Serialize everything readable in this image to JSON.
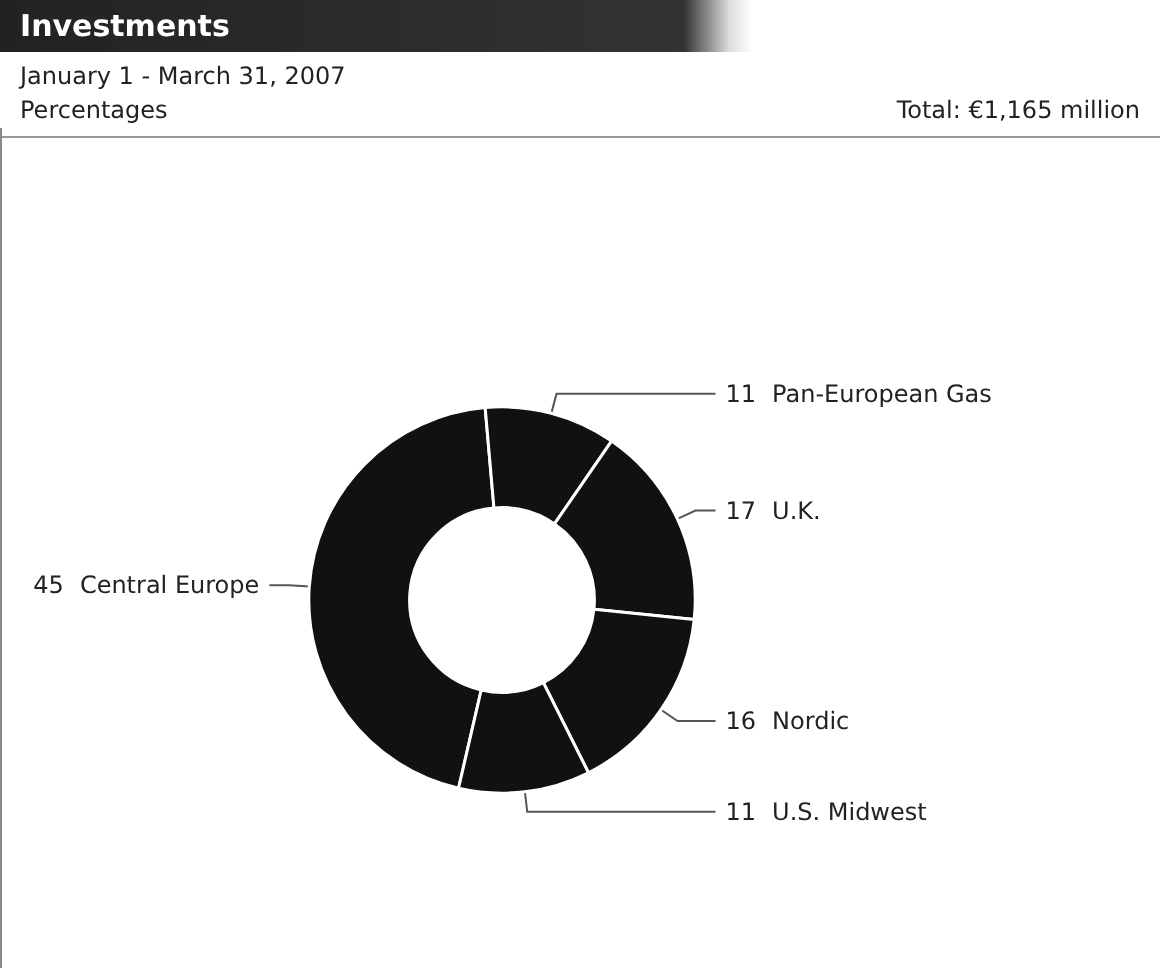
{
  "chart_data": {
    "type": "donut",
    "title": "Investments",
    "subtitle": "January 1 - March 31, 2007",
    "annotations": [
      "Percentages",
      "Total: €1,165 million"
    ],
    "categories": [
      "Central Europe",
      "Pan-European Gas",
      "U.K.",
      "Nordic",
      "U.S. Midwest"
    ],
    "values": [
      45,
      11,
      17,
      16,
      11
    ],
    "colors": [
      "#111111",
      "#111111",
      "#111111",
      "#111111",
      "#111111"
    ],
    "data_labels": true,
    "legend": false
  }
}
